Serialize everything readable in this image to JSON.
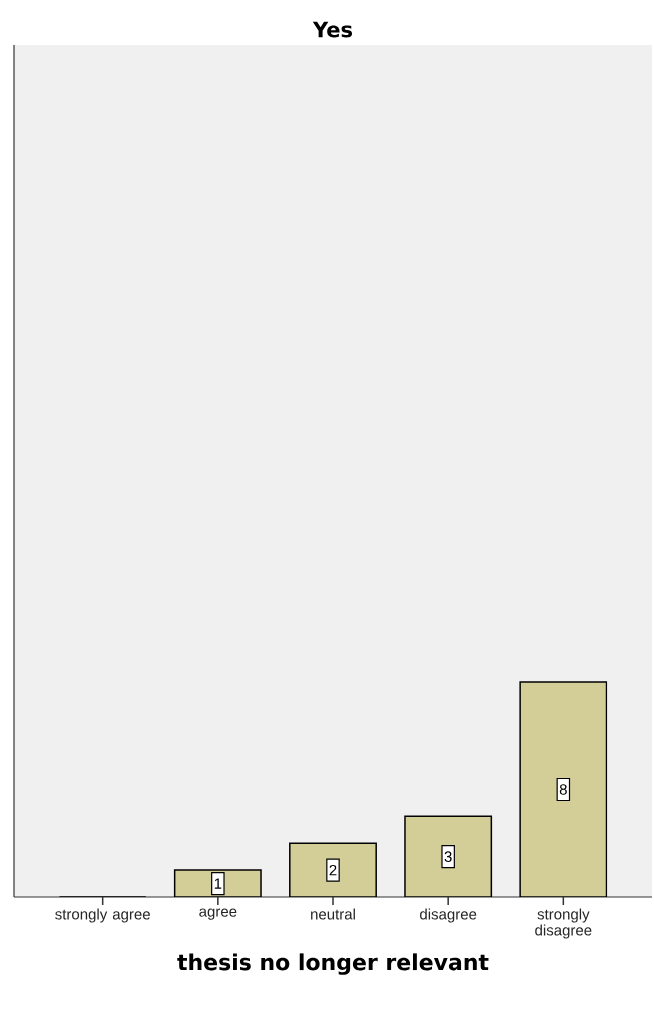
{
  "chart_data": {
    "type": "bar",
    "title": "Yes",
    "xlabel": "thesis no longer relevant",
    "categories": [
      "strongly agree",
      "agree",
      "neutral",
      "disagree",
      "strongly disagree"
    ],
    "values": [
      0,
      1,
      2,
      3,
      8
    ],
    "value_labels": [
      null,
      "1",
      "2",
      "3",
      "8"
    ],
    "color": "#d3ce97",
    "ylim": [
      0,
      31.7
    ]
  }
}
